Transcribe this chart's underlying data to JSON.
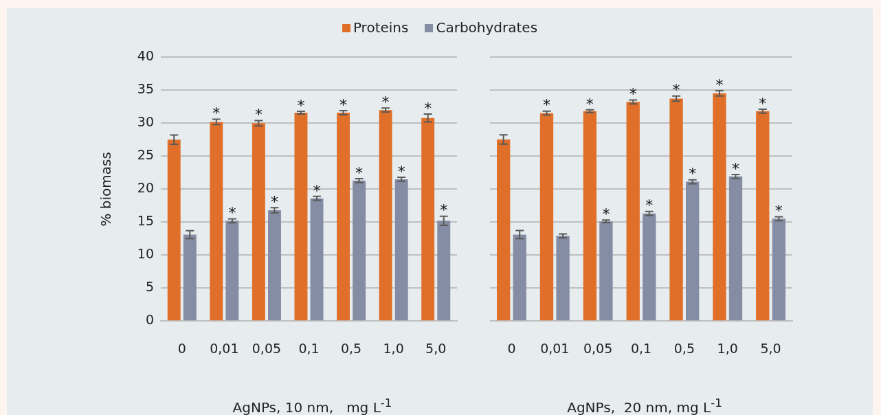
{
  "chart_data": [
    {
      "type": "bar",
      "ylabel": "% biomass",
      "xlabel": "AgNPs, 10 nm,   mg L$^{-1}$",
      "categories": [
        "0",
        "0,01",
        "0,05",
        "0,1",
        "0,5",
        "1,0",
        "5,0"
      ],
      "ylim": [
        0,
        40
      ],
      "yticks": [
        0,
        5,
        10,
        15,
        20,
        25,
        30,
        35,
        40
      ],
      "grid": "y",
      "legend": "top",
      "series": [
        {
          "name": "Proteins",
          "color": "#e07029",
          "values": [
            27.5,
            30.2,
            30.0,
            31.6,
            31.6,
            32.0,
            30.8
          ],
          "errors": [
            0.7,
            0.4,
            0.4,
            0.2,
            0.3,
            0.3,
            0.6
          ]
        },
        {
          "name": "Carbohydrates",
          "color": "#848da3",
          "values": [
            13.1,
            15.2,
            16.8,
            18.6,
            21.3,
            21.5,
            15.2
          ],
          "errors": [
            0.6,
            0.3,
            0.4,
            0.3,
            0.3,
            0.3,
            0.7
          ]
        }
      ],
      "annotations": [
        {
          "text": "*",
          "x": "0,01",
          "y": 30.2
        },
        {
          "text": "*",
          "x": "0,05",
          "y": 30.0
        },
        {
          "text": "*",
          "x": "0,1",
          "y": 31.6
        },
        {
          "text": "*",
          "x": "0,5",
          "y": 31.6
        },
        {
          "text": "*",
          "x": "1,0",
          "y": 32.0
        },
        {
          "text": "*",
          "x": "5,0",
          "y": 30.8
        },
        {
          "text": "*",
          "x": "0,01",
          "y": 15.2
        },
        {
          "text": "*",
          "x": "0,05",
          "y": 16.8
        },
        {
          "text": "*",
          "x": "0,1",
          "y": 18.6
        },
        {
          "text": "*",
          "x": "0,5",
          "y": 21.3
        },
        {
          "text": "*",
          "x": "1,0",
          "y": 21.5
        },
        {
          "text": "*",
          "x": "5,0",
          "y": 15.2
        }
      ]
    },
    {
      "type": "bar",
      "xlabel": "AgNPs,  20 nm, mg L$^{-1}$",
      "categories": [
        "0",
        "0,01",
        "0,05",
        "0,1",
        "0,5",
        "1,0",
        "5,0"
      ],
      "ylim": [
        0,
        40
      ],
      "yticks": [
        0,
        5,
        10,
        15,
        20,
        25,
        30,
        35,
        40
      ],
      "grid": "y",
      "tick_labels": "x",
      "series": [
        {
          "color": "#e07029",
          "values": [
            27.5,
            31.5,
            31.8,
            33.2,
            33.7,
            34.5,
            31.8
          ],
          "errors": [
            0.7,
            0.3,
            0.2,
            0.3,
            0.4,
            0.4,
            0.3
          ]
        },
        {
          "color": "#848da3",
          "values": [
            13.1,
            12.9,
            15.1,
            16.3,
            21.1,
            21.9,
            15.5
          ],
          "errors": [
            0.6,
            0.3,
            0.2,
            0.3,
            0.3,
            0.3,
            0.3
          ]
        }
      ],
      "annotations": [
        {
          "text": "*",
          "x": "0,01",
          "y": 31.5
        },
        {
          "text": "*",
          "x": "0,05",
          "y": 31.8
        },
        {
          "text": "*",
          "x": "0,1",
          "y": 33.2
        },
        {
          "text": "*",
          "x": "0,5",
          "y": 33.7
        },
        {
          "text": "*",
          "x": "1,0",
          "y": 34.5
        },
        {
          "text": "*",
          "x": "5,0",
          "y": 31.8
        },
        {
          "text": "*",
          "x": "0,05",
          "y": 15.1
        },
        {
          "text": "*",
          "x": "0,1",
          "y": 16.3
        },
        {
          "text": "*",
          "x": "0,5",
          "y": 21.1
        },
        {
          "text": "*",
          "x": "1,0",
          "y": 21.9
        },
        {
          "text": "*",
          "x": "5,0",
          "y": 15.5
        }
      ]
    }
  ]
}
